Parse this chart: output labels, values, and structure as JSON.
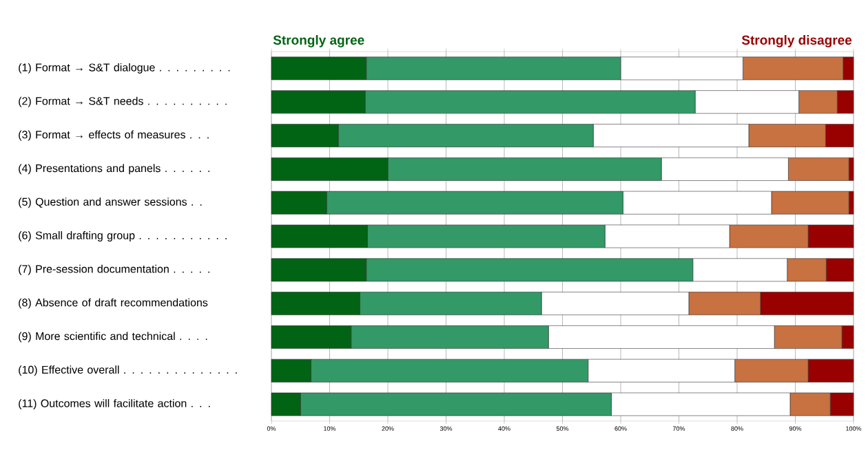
{
  "chart_data": {
    "type": "bar",
    "orientation": "horizontal",
    "stacked": true,
    "grid": "x",
    "categories": [
      "(1)  Format → S&T dialogue . . . . . . . . .",
      "(2)  Format → S&T needs . . . . . . . . . .",
      "(3)  Format → effects of measures . . .",
      "(4)  Presentations and panels  . . . . . .",
      "(5)  Question and answer sessions . .",
      "(6)  Small drafting group  . . . . . . . . . . .",
      "(7)  Pre-session documentation  . . . . .",
      "(8)  Absence of draft recommendations",
      "(9)  More scientific and technical  . . . .",
      "(10) Effective overall . . . . . . . . . . . . . .",
      "(11) Outcomes will facilitate action  . . ."
    ],
    "series": [
      {
        "name": "Strongly agree",
        "color": "#006414",
        "values": [
          16.3,
          16.1,
          11.5,
          20,
          9.5,
          16.5,
          16.3,
          15.2,
          13.7,
          6.8,
          5
        ]
      },
      {
        "color": "#339966",
        "values": [
          43.7,
          56.7,
          43.8,
          47,
          50.9,
          40.8,
          56.1,
          31.2,
          33.9,
          47.6,
          53.4
        ]
      },
      {
        "color": "#ffffff",
        "values": [
          21,
          17.8,
          26.7,
          21.8,
          25.5,
          21.4,
          16.2,
          25.3,
          38.8,
          25.2,
          30.7
        ]
      },
      {
        "color": "#c87141",
        "values": [
          17.2,
          6.6,
          13.2,
          10.4,
          13.3,
          13.5,
          6.7,
          12.3,
          11.6,
          12.6,
          6.9
        ]
      },
      {
        "name": "Strongly disagree",
        "color": "#990000",
        "values": [
          1.8,
          2.8,
          4.8,
          0.8,
          0.8,
          7.8,
          4.7,
          16,
          2,
          7.8,
          4
        ]
      }
    ],
    "xlim": [
      0,
      100
    ],
    "xticks": [
      {
        "value": 0,
        "label": "0%"
      },
      {
        "value": 10,
        "label": "10%"
      },
      {
        "value": 20,
        "label": "20%"
      },
      {
        "value": 30,
        "label": "30%"
      },
      {
        "value": 40,
        "label": "40%"
      },
      {
        "value": 50,
        "label": "50%"
      },
      {
        "value": 60,
        "label": "60%"
      },
      {
        "value": 70,
        "label": "70%"
      },
      {
        "value": 80,
        "label": "80%"
      },
      {
        "value": 90,
        "label": "90%"
      },
      {
        "value": 100,
        "label": "100%"
      }
    ]
  }
}
